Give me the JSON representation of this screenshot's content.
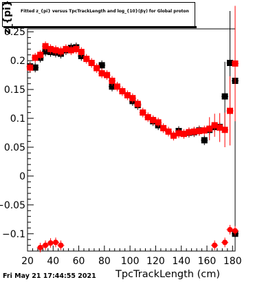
{
  "header": {
    "title": "Fitted z_{pi} versus TpcTrackLength and log_{10}(βγ) for Global proton"
  },
  "footer": {
    "timestamp": "Fri May 21 17:44:55 2021"
  },
  "chart_data": {
    "type": "scatter",
    "title": "Fitted z_{pi} versus TpcTrackLength and log_{10}(βγ) for Global proton",
    "xlabel": "TpcTrackLength (cm)",
    "ylabel": "z_{pi}",
    "xlim": [
      20,
      182
    ],
    "ylim": [
      -0.13,
      0.255
    ],
    "xticks": [
      20,
      40,
      60,
      80,
      100,
      120,
      140,
      160,
      180
    ],
    "yticks": [
      -0.1,
      -0.05,
      0,
      0.05,
      0.1,
      0.15,
      0.2,
      0.25
    ],
    "ytick_labels": [
      "−0.1",
      "−0.05",
      "0",
      "0.05",
      "0.1",
      "0.15",
      "0.2",
      "0.25"
    ],
    "grid": false,
    "series": [
      {
        "color": "#000000",
        "marker": "square",
        "points": [
          {
            "x": 22,
            "y": 0.19
          },
          {
            "x": 26,
            "y": 0.188
          },
          {
            "x": 30,
            "y": 0.205
          },
          {
            "x": 34,
            "y": 0.216
          },
          {
            "x": 38,
            "y": 0.215
          },
          {
            "x": 42,
            "y": 0.214
          },
          {
            "x": 46,
            "y": 0.212
          },
          {
            "x": 50,
            "y": 0.218
          },
          {
            "x": 54,
            "y": 0.222
          },
          {
            "x": 58,
            "y": 0.223
          },
          {
            "x": 62,
            "y": 0.208
          },
          {
            "x": 78,
            "y": 0.192
          },
          {
            "x": 86,
            "y": 0.155
          },
          {
            "x": 102,
            "y": 0.13
          },
          {
            "x": 106,
            "y": 0.123
          },
          {
            "x": 118,
            "y": 0.095
          },
          {
            "x": 122,
            "y": 0.088
          },
          {
            "x": 138,
            "y": 0.078
          },
          {
            "x": 146,
            "y": 0.075
          },
          {
            "x": 150,
            "y": 0.076
          },
          {
            "x": 154,
            "y": 0.079
          },
          {
            "x": 158,
            "y": 0.062
          },
          {
            "x": 162,
            "y": 0.08
          },
          {
            "x": 166,
            "y": 0.085
          },
          {
            "x": 170,
            "y": 0.085
          },
          {
            "x": 174,
            "y": 0.138,
            "err": 0.06
          },
          {
            "x": 178,
            "y": 0.196,
            "err": 0.09
          },
          {
            "x": 182,
            "y": 0.165,
            "err": 0.12
          },
          {
            "x": 182,
            "y": -0.1
          }
        ]
      },
      {
        "color": "#ff0000",
        "marker": "square",
        "points": [
          {
            "x": 22,
            "y": 0.188
          },
          {
            "x": 26,
            "y": 0.205
          },
          {
            "x": 30,
            "y": 0.21
          },
          {
            "x": 34,
            "y": 0.225
          },
          {
            "x": 38,
            "y": 0.22
          },
          {
            "x": 42,
            "y": 0.218
          },
          {
            "x": 46,
            "y": 0.216
          },
          {
            "x": 50,
            "y": 0.22
          },
          {
            "x": 54,
            "y": 0.218
          },
          {
            "x": 58,
            "y": 0.22
          },
          {
            "x": 62,
            "y": 0.215
          },
          {
            "x": 66,
            "y": 0.203
          },
          {
            "x": 70,
            "y": 0.196
          },
          {
            "x": 74,
            "y": 0.187
          },
          {
            "x": 78,
            "y": 0.178
          },
          {
            "x": 82,
            "y": 0.175
          },
          {
            "x": 86,
            "y": 0.165
          },
          {
            "x": 90,
            "y": 0.155
          },
          {
            "x": 94,
            "y": 0.147
          },
          {
            "x": 98,
            "y": 0.14
          },
          {
            "x": 102,
            "y": 0.135
          },
          {
            "x": 106,
            "y": 0.125
          },
          {
            "x": 110,
            "y": 0.11
          },
          {
            "x": 114,
            "y": 0.102
          },
          {
            "x": 118,
            "y": 0.097
          },
          {
            "x": 122,
            "y": 0.093
          },
          {
            "x": 126,
            "y": 0.083
          },
          {
            "x": 130,
            "y": 0.077
          },
          {
            "x": 134,
            "y": 0.07
          },
          {
            "x": 138,
            "y": 0.074
          },
          {
            "x": 142,
            "y": 0.073
          },
          {
            "x": 146,
            "y": 0.076
          },
          {
            "x": 150,
            "y": 0.077
          },
          {
            "x": 154,
            "y": 0.078
          },
          {
            "x": 158,
            "y": 0.079
          },
          {
            "x": 162,
            "y": 0.082,
            "err": 0.02
          },
          {
            "x": 166,
            "y": 0.088,
            "err": 0.02
          },
          {
            "x": 170,
            "y": 0.084,
            "err": 0.025
          },
          {
            "x": 174,
            "y": 0.08,
            "err": 0.03
          },
          {
            "x": 178,
            "y": 0.113,
            "err": 0.06
          },
          {
            "x": 182,
            "y": 0.195,
            "err": 0.1
          },
          {
            "x": 30,
            "y": -0.124
          },
          {
            "x": 34,
            "y": -0.12
          },
          {
            "x": 38,
            "y": -0.116
          },
          {
            "x": 42,
            "y": -0.115
          },
          {
            "x": 46,
            "y": -0.12
          },
          {
            "x": 166,
            "y": -0.12
          },
          {
            "x": 174,
            "y": -0.115
          },
          {
            "x": 178,
            "y": -0.093
          },
          {
            "x": 182,
            "y": -0.095
          }
        ]
      }
    ]
  }
}
